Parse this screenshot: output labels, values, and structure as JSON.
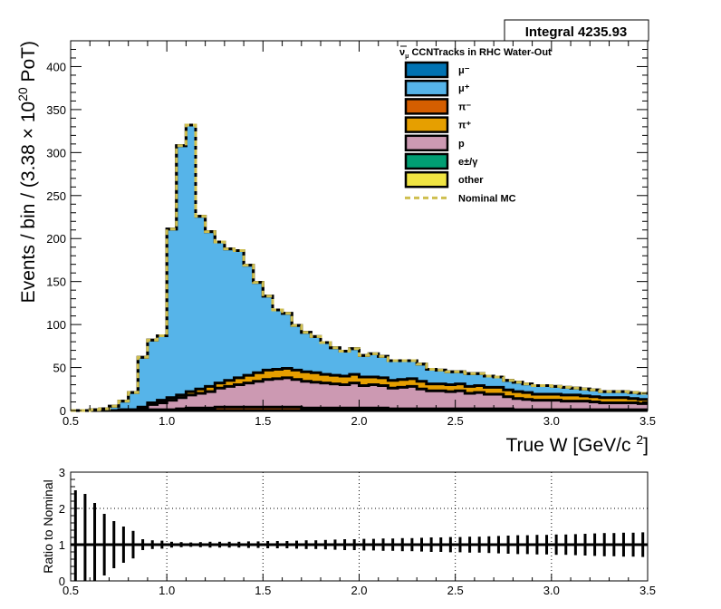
{
  "stats_box": {
    "label": "Integral 4235.93"
  },
  "chart_data": [
    {
      "type": "area",
      "stacked": true,
      "title": "",
      "xlabel_parts": {
        "main": "True W [GeV/c ",
        "sup": "2",
        "tail": "]"
      },
      "ylabel_parts": {
        "main": "Events / bin / (3.38  × 10",
        "sup": "20",
        "tail": " PoT)"
      },
      "xlim": [
        0.5,
        3.5
      ],
      "ylim": [
        0,
        430
      ],
      "x_ticks": [
        0.5,
        1.0,
        1.5,
        2.0,
        2.5,
        3.0,
        3.5
      ],
      "x_tick_labels": [
        "0.5",
        "1.0",
        "1.5",
        "2.0",
        "2.5",
        "3.0",
        "3.5"
      ],
      "y_ticks": [
        0,
        50,
        100,
        150,
        200,
        250,
        300,
        350,
        400
      ],
      "y_tick_labels": [
        "0",
        "50",
        "100",
        "150",
        "200",
        "250",
        "300",
        "350",
        "400"
      ],
      "bin_edges_start": 0.5,
      "bin_width": 0.05,
      "grid": false,
      "legend": {
        "placement": "top-right",
        "header_parts": {
          "nu": "ν",
          "sub": "μ",
          "text": " CCNTracks in RHC Water-Out"
        }
      },
      "series": [
        {
          "name": "other",
          "color": "#f0e442",
          "values": [
            0,
            0,
            0,
            0,
            0,
            0,
            0,
            0,
            0,
            0,
            0,
            0,
            0,
            0,
            0,
            0,
            0,
            0,
            0,
            0,
            0,
            0,
            0,
            0,
            0,
            0,
            0,
            0,
            0,
            0,
            0,
            0,
            0,
            0,
            0,
            0,
            0,
            0,
            0,
            0,
            0,
            0,
            0,
            0,
            0,
            0,
            0,
            0,
            0,
            0,
            0,
            0,
            0,
            0,
            0,
            0,
            0,
            0,
            0,
            0
          ]
        },
        {
          "name": "e±/γ",
          "color": "#009e73",
          "values": [
            0,
            0,
            0,
            0,
            0,
            0,
            0,
            0,
            0,
            0,
            0,
            0,
            0,
            0,
            0,
            0,
            0,
            0,
            0,
            0,
            0,
            0,
            0,
            0,
            0,
            0,
            0,
            0,
            0,
            0,
            0,
            0,
            0,
            0,
            0,
            0,
            0,
            0,
            0,
            0,
            0,
            0,
            0,
            0,
            0,
            0,
            0,
            0,
            0,
            0,
            0,
            0,
            0,
            0,
            0,
            0,
            0,
            0,
            0,
            0
          ]
        },
        {
          "name": "π⁻",
          "color": "#d55e00",
          "values": [
            0,
            0,
            0,
            0,
            0,
            0,
            0,
            0,
            1,
            1,
            1,
            2,
            3,
            3,
            3,
            4,
            4,
            4,
            4,
            4,
            4,
            4,
            4,
            4,
            3,
            3,
            3,
            3,
            3,
            3,
            3,
            3,
            3,
            2,
            2,
            2,
            2,
            2,
            2,
            2,
            2,
            2,
            2,
            2,
            2,
            2,
            1,
            1,
            1,
            1,
            1,
            1,
            1,
            1,
            1,
            1,
            1,
            1,
            1,
            1
          ]
        },
        {
          "name": "p",
          "color": "#cc99b2",
          "values": [
            0,
            0,
            0,
            0,
            0,
            1,
            1,
            3,
            6,
            8,
            11,
            13,
            15,
            17,
            19,
            22,
            24,
            26,
            28,
            30,
            32,
            33,
            34,
            32,
            31,
            30,
            29,
            28,
            27,
            29,
            26,
            27,
            26,
            24,
            25,
            26,
            23,
            21,
            21,
            20,
            21,
            18,
            19,
            17,
            17,
            14,
            13,
            12,
            11,
            11,
            11,
            10,
            10,
            10,
            9,
            8,
            8,
            8,
            8,
            7
          ]
        },
        {
          "name": "π⁺",
          "color": "#e69f00",
          "values": [
            0,
            0,
            0,
            0,
            0,
            0,
            0,
            1,
            2,
            3,
            3,
            3,
            4,
            5,
            6,
            6,
            7,
            8,
            9,
            10,
            11,
            11,
            11,
            11,
            11,
            11,
            10,
            10,
            10,
            10,
            10,
            9,
            9,
            9,
            9,
            9,
            9,
            8,
            8,
            8,
            8,
            8,
            8,
            8,
            8,
            8,
            8,
            8,
            7,
            7,
            7,
            7,
            7,
            6,
            6,
            6,
            6,
            6,
            5,
            5
          ]
        },
        {
          "name": "μ⁺",
          "color": "#56b4e9",
          "values": [
            0,
            0,
            1,
            2,
            5,
            10,
            20,
            58,
            73,
            75,
            196,
            290,
            310,
            201,
            180,
            164,
            153,
            148,
            128,
            105,
            86,
            69,
            64,
            52,
            46,
            42,
            37,
            32,
            29,
            30,
            25,
            27,
            25,
            23,
            22,
            21,
            20,
            17,
            16,
            15,
            14,
            15,
            14,
            13,
            12,
            11,
            11,
            10,
            10,
            10,
            9,
            9,
            8,
            8,
            8,
            7,
            7,
            7,
            7,
            7
          ]
        },
        {
          "name": "μ⁻",
          "color": "#0072b2",
          "values": [
            0,
            0,
            0,
            0,
            0,
            0,
            0,
            0,
            0,
            0,
            0,
            0,
            0,
            0,
            0,
            0,
            0,
            0,
            0,
            0,
            0,
            0,
            0,
            0,
            0,
            0,
            0,
            0,
            0,
            0,
            0,
            0,
            0,
            0,
            0,
            0,
            0,
            0,
            0,
            0,
            0,
            0,
            0,
            0,
            0,
            0,
            0,
            0,
            0,
            0,
            0,
            0,
            0,
            0,
            0,
            0,
            0,
            0,
            0,
            0
          ]
        },
        {
          "name": "Nominal MC",
          "color": "#cfbf4f",
          "style": "dashed-line",
          "values": []
        }
      ]
    },
    {
      "type": "scatter",
      "subtype": "ratio-with-error-bars",
      "ylabel": "Ratio to Nominal",
      "xlim": [
        0.5,
        3.5
      ],
      "ylim": [
        0,
        3
      ],
      "grid": true,
      "x_ticks": [
        0.5,
        1.0,
        1.5,
        2.0,
        2.5,
        3.0,
        3.5
      ],
      "x_tick_labels": [
        "0.5",
        "1.0",
        "1.5",
        "2.0",
        "2.5",
        "3.0",
        "3.5"
      ],
      "y_ticks": [
        0,
        1,
        2,
        3
      ],
      "y_tick_labels": [
        "0",
        "1",
        "2",
        "3"
      ],
      "ratio": 1,
      "error_half_widths": [
        1.5,
        1.4,
        1.15,
        0.85,
        0.65,
        0.5,
        0.38,
        0.15,
        0.12,
        0.11,
        0.08,
        0.07,
        0.06,
        0.07,
        0.08,
        0.08,
        0.08,
        0.08,
        0.09,
        0.09,
        0.1,
        0.1,
        0.1,
        0.11,
        0.12,
        0.12,
        0.13,
        0.14,
        0.15,
        0.15,
        0.16,
        0.16,
        0.17,
        0.17,
        0.18,
        0.18,
        0.19,
        0.2,
        0.2,
        0.21,
        0.21,
        0.22,
        0.22,
        0.23,
        0.24,
        0.25,
        0.26,
        0.26,
        0.27,
        0.27,
        0.28,
        0.28,
        0.29,
        0.3,
        0.31,
        0.32,
        0.32,
        0.33,
        0.33,
        0.34
      ]
    }
  ]
}
